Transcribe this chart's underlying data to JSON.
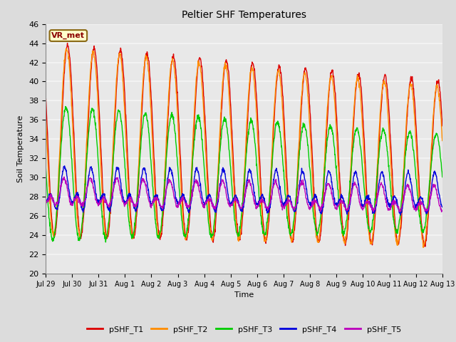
{
  "title": "Peltier SHF Temperatures",
  "xlabel": "Time",
  "ylabel": "Soil Temperature",
  "ylim": [
    20,
    46
  ],
  "annotation_text": "VR_met",
  "background_color": "#dcdcdc",
  "plot_bg_color": "#e8e8e8",
  "grid_color": "#f5f5f5",
  "series": [
    {
      "label": "pSHF_T1",
      "color": "#dd0000"
    },
    {
      "label": "pSHF_T2",
      "color": "#ff8c00"
    },
    {
      "label": "pSHF_T3",
      "color": "#00cc00"
    },
    {
      "label": "pSHF_T4",
      "color": "#0000dd"
    },
    {
      "label": "pSHF_T5",
      "color": "#bb00bb"
    }
  ],
  "xtick_labels": [
    "Jul 29",
    "Jul 30",
    "Jul 31",
    "Aug 1",
    "Aug 2",
    "Aug 3",
    "Aug 4",
    "Aug 5",
    "Aug 6",
    "Aug 7",
    "Aug 8",
    "Aug 9",
    "Aug 10",
    "Aug 11",
    "Aug 12",
    "Aug 13"
  ],
  "n_days": 15,
  "samples_per_day": 96
}
